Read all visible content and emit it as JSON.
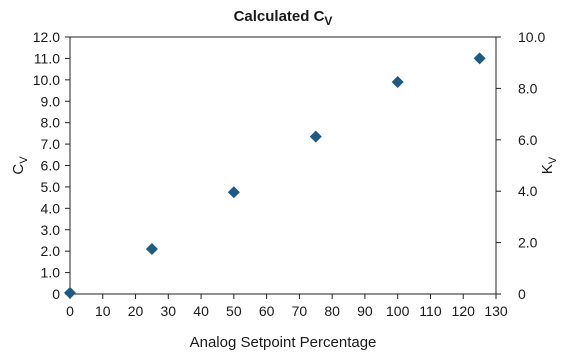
{
  "chart_data": {
    "type": "scatter",
    "title": {
      "main": "Calculated C",
      "sub": "V"
    },
    "xlabel": "Analog Setpoint Percentage",
    "ylabel": {
      "main": "C",
      "sub": "V"
    },
    "y2label": {
      "main": "K",
      "sub": "V"
    },
    "xlim": [
      0,
      130
    ],
    "ylim": [
      0,
      12
    ],
    "y2lim": [
      0,
      10
    ],
    "xticks": [
      "0",
      "10",
      "20",
      "30",
      "40",
      "50",
      "60",
      "70",
      "80",
      "90",
      "100",
      "110",
      "120",
      "130"
    ],
    "yticks": [
      "0",
      "1.0",
      "2.0",
      "3.0",
      "4.0",
      "5.0",
      "6.0",
      "7.0",
      "8.0",
      "9.0",
      "10.0",
      "11.0",
      "12.0"
    ],
    "y2ticks": [
      "0",
      "2.0",
      "4.0",
      "6.0",
      "8.0",
      "10.0"
    ],
    "marker_color": "#1f5a84",
    "marker": "diamond",
    "grid": false,
    "series": [
      {
        "points": [
          {
            "x": 0,
            "y": 0.05
          },
          {
            "x": 25,
            "y": 2.1
          },
          {
            "x": 50,
            "y": 4.75
          },
          {
            "x": 75,
            "y": 7.35
          },
          {
            "x": 100,
            "y": 9.9
          },
          {
            "x": 125,
            "y": 11.0
          }
        ]
      }
    ]
  }
}
